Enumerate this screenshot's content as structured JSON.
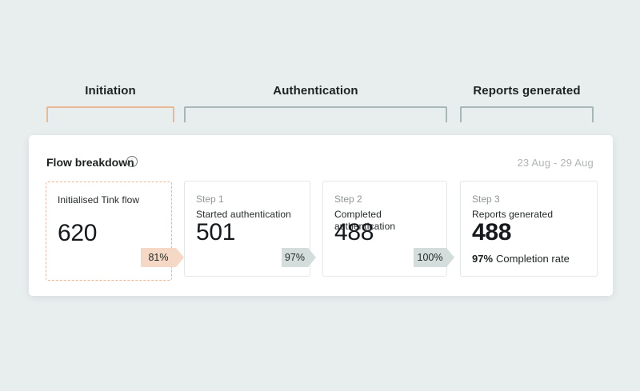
{
  "colors": {
    "page_background": "#e8edee",
    "panel_background": "#ffffff",
    "accent_peach_border": "#ecb795",
    "accent_peach_fill": "#f5d8c5",
    "accent_teal_border": "#a6b7b5",
    "accent_teal_fill": "#d3dddc",
    "text_dark": "#1d2322",
    "text_gray": "#8f9695",
    "text_light_gray": "#b1b5b4"
  },
  "funnel": {
    "stages": [
      {
        "label": "Initiation",
        "accent": "peach"
      },
      {
        "label": "Authentication",
        "accent": "teal"
      },
      {
        "label": "Reports generated",
        "accent": "teal"
      }
    ]
  },
  "icons": {
    "info_glyph": "i"
  },
  "panel": {
    "title": "Flow breakdown",
    "date_range": "23 Aug - 29 Aug",
    "cards": [
      {
        "step_label": "",
        "title": "Initialised Tink flow",
        "value": "620",
        "badge": "81%"
      },
      {
        "step_label": "Step 1",
        "title": "Started authentication",
        "value": "501",
        "badge": "97%"
      },
      {
        "step_label": "Step 2",
        "title": "Completed authentication",
        "value": "488",
        "badge": "100%"
      },
      {
        "step_label": "Step 3",
        "title": "Reports generated",
        "value": "488",
        "completion_rate_value": "97%",
        "completion_rate_label": "Completion rate"
      }
    ]
  }
}
